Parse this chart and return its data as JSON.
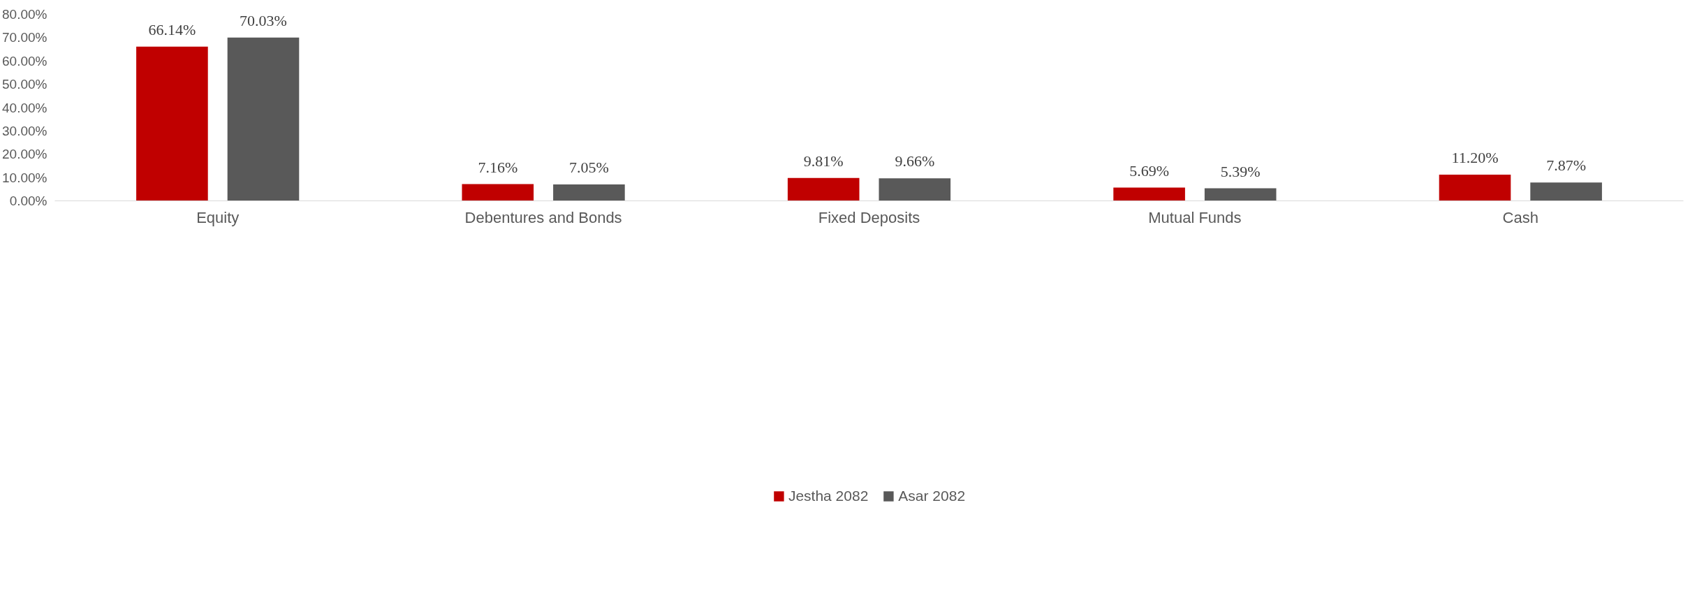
{
  "chart_data": {
    "type": "bar",
    "categories": [
      "Equity",
      "Debentures and Bonds",
      "Fixed Deposits",
      "Mutual Funds",
      "Cash"
    ],
    "series": [
      {
        "name": "Jestha 2082",
        "color": "#c00000",
        "values": [
          66.14,
          7.16,
          9.81,
          5.69,
          11.2
        ],
        "value_labels": [
          "66.14%",
          "7.16%",
          "9.81%",
          "5.69%",
          "11.20%"
        ]
      },
      {
        "name": "Asar 2082",
        "color": "#595959",
        "values": [
          70.03,
          7.05,
          9.66,
          5.39,
          7.87
        ],
        "value_labels": [
          "70.03%",
          "7.05%",
          "9.66%",
          "5.39%",
          "7.87%"
        ]
      }
    ],
    "ylim": [
      0,
      80
    ],
    "yticks": [
      {
        "value": 0,
        "label": "0.00%"
      },
      {
        "value": 10,
        "label": "10.00%"
      },
      {
        "value": 20,
        "label": "20.00%"
      },
      {
        "value": 30,
        "label": "30.00%"
      },
      {
        "value": 40,
        "label": "40.00%"
      },
      {
        "value": 50,
        "label": "50.00%"
      },
      {
        "value": 60,
        "label": "60.00%"
      },
      {
        "value": 70,
        "label": "70.00%"
      },
      {
        "value": 80,
        "label": "80.00%"
      }
    ],
    "grid": false,
    "legend": "bottom"
  }
}
